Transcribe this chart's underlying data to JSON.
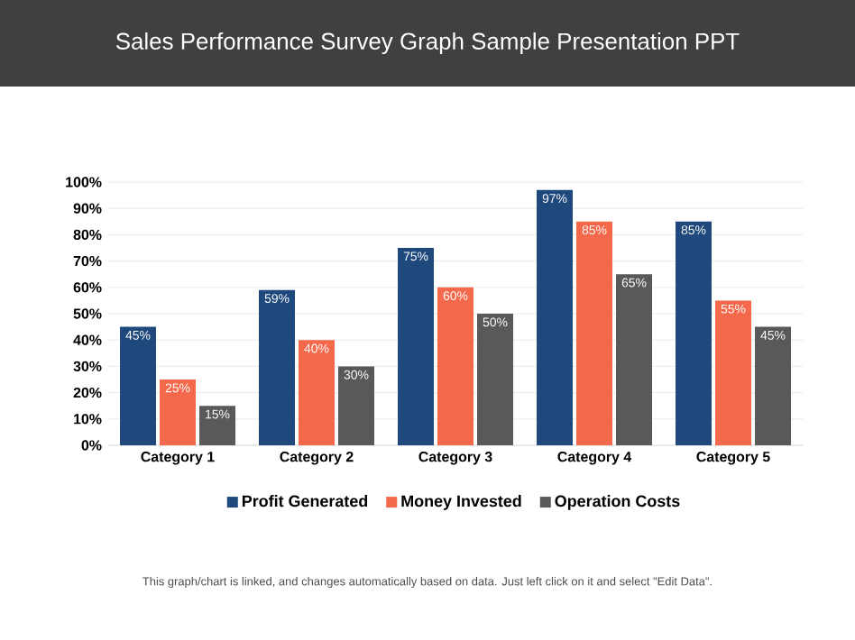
{
  "chart_data": {
    "type": "bar",
    "title": "Sales Performance Survey Graph Sample Presentation PPT",
    "categories": [
      "Category 1",
      "Category 2",
      "Category 3",
      "Category 4",
      "Category 5"
    ],
    "series": [
      {
        "name": "Profit Generated",
        "color": "#1f487c",
        "values": [
          45,
          59,
          75,
          97,
          85
        ],
        "value_labels": [
          "45%",
          "59%",
          "75%",
          "97%",
          "85%"
        ]
      },
      {
        "name": "Money Invested",
        "color": "#f4694c",
        "values": [
          25,
          40,
          60,
          85,
          55
        ],
        "value_labels": [
          "25%",
          "40%",
          "60%",
          "85%",
          "55%"
        ]
      },
      {
        "name": "Operation Costs",
        "color": "#595959",
        "values": [
          15,
          30,
          50,
          65,
          45
        ],
        "value_labels": [
          "15%",
          "30%",
          "50%",
          "65%",
          "45%"
        ]
      }
    ],
    "ylim": [
      0,
      100
    ],
    "yticks": [
      {
        "value": 0,
        "label": "0%"
      },
      {
        "value": 10,
        "label": "10%"
      },
      {
        "value": 20,
        "label": "20%"
      },
      {
        "value": 30,
        "label": "30%"
      },
      {
        "value": 40,
        "label": "40%"
      },
      {
        "value": 50,
        "label": "50%"
      },
      {
        "value": 60,
        "label": "60%"
      },
      {
        "value": 70,
        "label": "70%"
      },
      {
        "value": 80,
        "label": "80%"
      },
      {
        "value": 90,
        "label": "90%"
      },
      {
        "value": 100,
        "label": "100%"
      }
    ],
    "grid": "y",
    "legend": "bottom",
    "annotations": [
      "This graph/chart is linked, and changes automatically based on data. Just left click on it and select \"Edit Data\"."
    ]
  }
}
